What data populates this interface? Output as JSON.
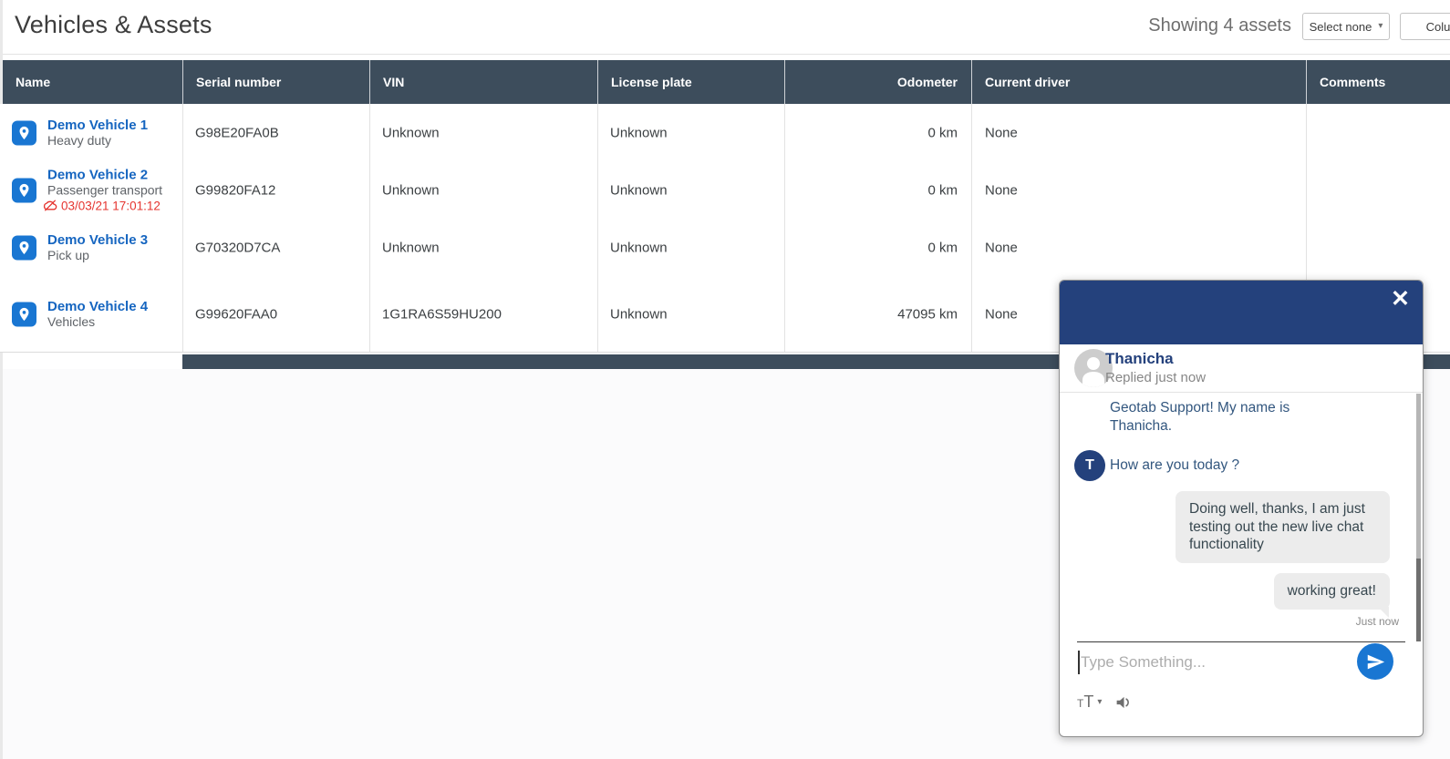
{
  "page": {
    "title": "Vehicles & Assets"
  },
  "toolbar": {
    "showing": "Showing 4 assets",
    "select_none_label": "Select none",
    "columns_label": "Colu",
    "caret": "▾"
  },
  "table": {
    "columns": [
      "Name",
      "Serial number",
      "VIN",
      "License plate",
      "Odometer",
      "Current driver",
      "Comments"
    ],
    "rows": [
      {
        "name": "Demo Vehicle 1",
        "subtitle": "Heavy duty",
        "alert": "",
        "serial": "G98E20FA0B",
        "vin": "Unknown",
        "plate": "Unknown",
        "odometer": "0 km",
        "driver": "None",
        "comments": ""
      },
      {
        "name": "Demo Vehicle 2",
        "subtitle": "Passenger transport",
        "alert": "03/03/21 17:01:12",
        "serial": "G99820FA12",
        "vin": "Unknown",
        "plate": "Unknown",
        "odometer": "0 km",
        "driver": "None",
        "comments": ""
      },
      {
        "name": "Demo Vehicle 3",
        "subtitle": "Pick up",
        "alert": "",
        "serial": "G70320D7CA",
        "vin": "Unknown",
        "plate": "Unknown",
        "odometer": "0 km",
        "driver": "None",
        "comments": ""
      },
      {
        "name": "Demo Vehicle 4",
        "subtitle": "Vehicles",
        "alert": "",
        "serial": "G99620FAA0",
        "vin": "1G1RA6S59HU200",
        "plate": "Unknown",
        "odometer": "47095 km",
        "driver": "None",
        "comments": ""
      }
    ]
  },
  "chat": {
    "agent_name": "Thanicha",
    "agent_status": "Replied just now",
    "close_glyph": "✕",
    "messages": [
      {
        "type": "agent-text",
        "avatar": "",
        "text": "Geotab Support! My name is Thanicha."
      },
      {
        "type": "agent-text",
        "avatar": "T",
        "text": "How are you today ?"
      },
      {
        "type": "user-bubble",
        "text": "Doing well, thanks, I am just testing out the new live chat functionality"
      },
      {
        "type": "user-bubble",
        "text": "working great!",
        "tail": true
      }
    ],
    "timestamp": "Just now",
    "input_placeholder": "Type Something...",
    "text_size_small": "T",
    "text_size_big": "T",
    "caret": "▾"
  },
  "icons": {
    "vehicle": "location-pin-icon",
    "alert": "cloud-off-icon",
    "chat_close": "close-icon",
    "chat_send": "send-icon",
    "chat_sound": "speaker-icon",
    "chat_text_size": "text-size-icon",
    "agent_avatar": "person-icon"
  },
  "colors": {
    "table_header_bg": "#3d4d5c",
    "chat_header_bg": "#24417c",
    "link_blue": "#1565c0",
    "accent_blue": "#1976d2",
    "alert_red": "#e5342f",
    "bubble_gray": "#ececec"
  }
}
